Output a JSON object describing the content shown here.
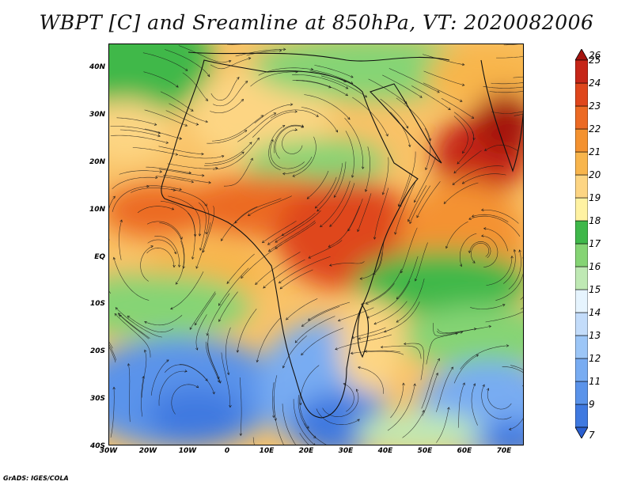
{
  "title": "WBPT [C] and Sreamline at 850hPa, VT: 2020082006",
  "credit": "GrADS: IGES/COLA",
  "lat_ticks": [
    "40N",
    "30N",
    "20N",
    "10N",
    "EQ",
    "10S",
    "20S",
    "30S",
    "40S"
  ],
  "lon_ticks": [
    "30W",
    "20W",
    "10W",
    "0",
    "10E",
    "20E",
    "30E",
    "40E",
    "50E",
    "60E",
    "70E"
  ],
  "colorbar": {
    "labels": [
      "7",
      "9",
      "11",
      "12",
      "13",
      "14",
      "15",
      "16",
      "17",
      "18",
      "19",
      "20",
      "21",
      "22",
      "23",
      "24",
      "25",
      "26"
    ],
    "colors": [
      "#2a5fd0",
      "#3f79e0",
      "#5a93ea",
      "#78acf2",
      "#9cc6f7",
      "#c3dcfa",
      "#e6f4fe",
      "#bfe9b4",
      "#85d474",
      "#3fb84a",
      "#fff2a2",
      "#fdd583",
      "#f8b54c",
      "#f49230",
      "#ec6a24",
      "#df461c",
      "#c62618",
      "#a4140f"
    ]
  },
  "chart_data": {
    "type": "map",
    "projection": "lat-lon",
    "lon_range": [
      -30,
      75
    ],
    "lat_range": [
      -40,
      45
    ],
    "field": "WBPT [C] at 850hPa",
    "overlay": "streamlines",
    "valid_time": "2020082006",
    "colorbar_range": [
      7,
      26
    ]
  }
}
